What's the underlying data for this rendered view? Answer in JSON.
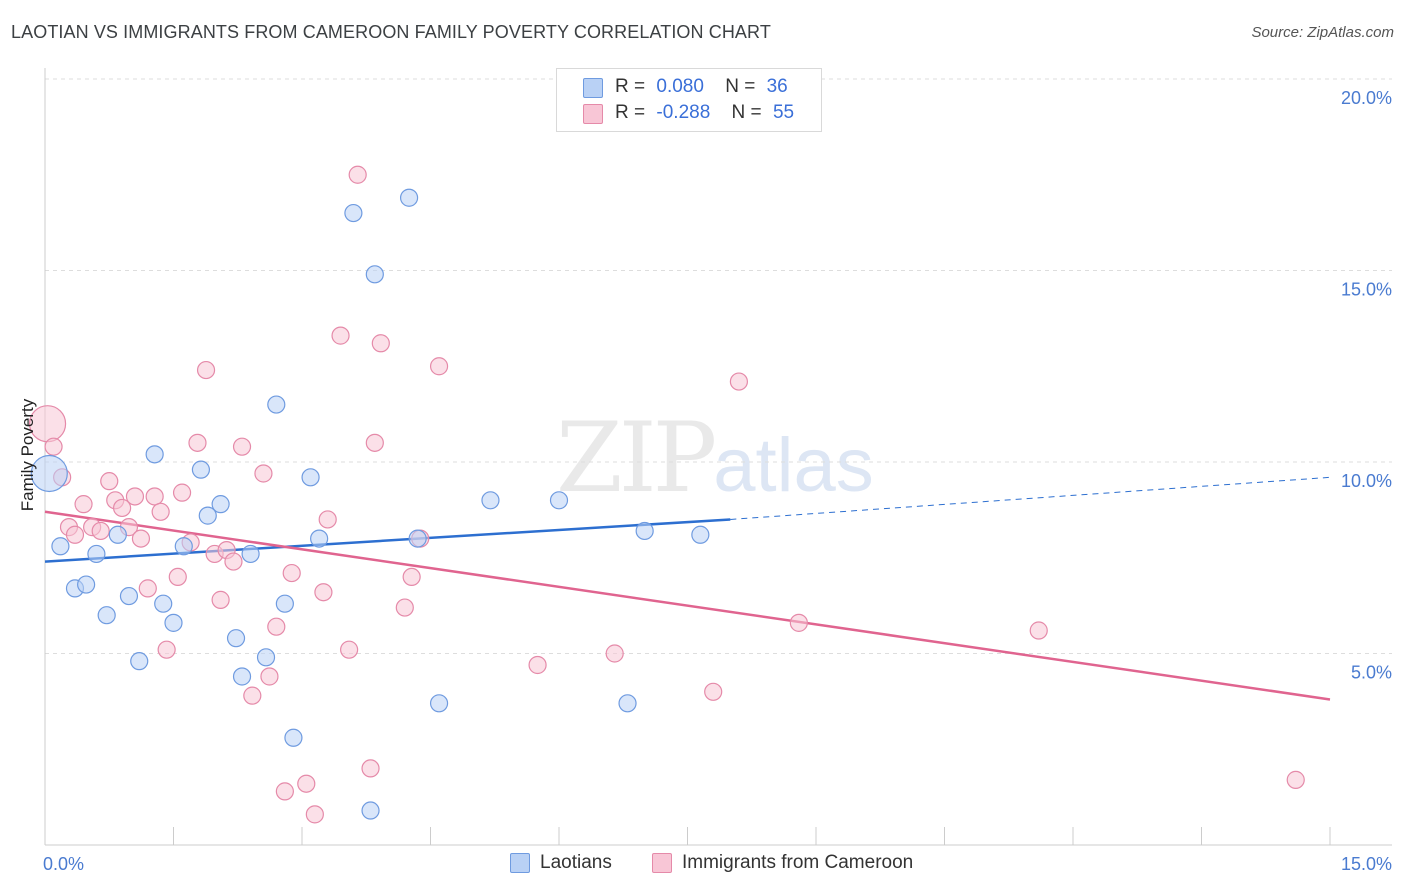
{
  "header": {
    "title": "LAOTIAN VS IMMIGRANTS FROM CAMEROON FAMILY POVERTY CORRELATION CHART",
    "source": "Source: ZipAtlas.com"
  },
  "watermark": {
    "zip": "ZIP",
    "atlas": "atlas"
  },
  "legend": {
    "rows": [
      {
        "r_label": "R =",
        "r_value": "0.080",
        "n_label": "N =",
        "n_value": "36"
      },
      {
        "r_label": "R =",
        "r_value": "-0.288",
        "n_label": "N =",
        "n_value": "55"
      }
    ]
  },
  "bottom_legend": {
    "series1": "Laotians",
    "series2": "Immigrants from Cameroon"
  },
  "colors": {
    "laotian_fill": "#b9d1f5",
    "laotian_stroke": "#6f9be0",
    "laotian_line": "#2d6fd0",
    "cameroon_fill": "#f8c6d6",
    "cameroon_stroke": "#e58aa9",
    "cameroon_line": "#e0648f",
    "tick_text": "#4a7bd0",
    "grid": "#dddddd"
  },
  "chart_data": {
    "type": "scatter",
    "title": "LAOTIAN VS IMMIGRANTS FROM CAMEROON FAMILY POVERTY CORRELATION CHART",
    "xlabel": "",
    "ylabel": "Family Poverty",
    "xlim": [
      0,
      15
    ],
    "ylim": [
      0,
      20
    ],
    "x_tick_labels": [
      "0.0%",
      "15.0%"
    ],
    "y_ticks": [
      5,
      10,
      15,
      20
    ],
    "y_tick_labels": [
      "5.0%",
      "10.0%",
      "15.0%",
      "20.0%"
    ],
    "grid": true,
    "legend_position": "top-center",
    "series": [
      {
        "name": "Laotians",
        "r": 0.08,
        "n": 36,
        "trend": {
          "x": [
            0,
            8.0
          ],
          "y": [
            7.4,
            8.5
          ],
          "dashed_to": [
            15,
            9.6
          ]
        },
        "points": [
          {
            "x": 0.05,
            "y": 9.7,
            "big": true
          },
          {
            "x": 0.18,
            "y": 7.8
          },
          {
            "x": 0.35,
            "y": 6.7
          },
          {
            "x": 0.48,
            "y": 6.8
          },
          {
            "x": 0.6,
            "y": 7.6
          },
          {
            "x": 0.72,
            "y": 6.0
          },
          {
            "x": 0.85,
            "y": 8.1
          },
          {
            "x": 0.98,
            "y": 6.5
          },
          {
            "x": 1.1,
            "y": 4.8
          },
          {
            "x": 1.28,
            "y": 10.2
          },
          {
            "x": 1.38,
            "y": 6.3
          },
          {
            "x": 1.5,
            "y": 5.8
          },
          {
            "x": 1.62,
            "y": 7.8
          },
          {
            "x": 1.82,
            "y": 9.8
          },
          {
            "x": 1.9,
            "y": 8.6
          },
          {
            "x": 2.05,
            "y": 8.9
          },
          {
            "x": 2.23,
            "y": 5.4
          },
          {
            "x": 2.3,
            "y": 4.4
          },
          {
            "x": 2.4,
            "y": 7.6
          },
          {
            "x": 2.58,
            "y": 4.9
          },
          {
            "x": 2.7,
            "y": 11.5
          },
          {
            "x": 2.8,
            "y": 6.3
          },
          {
            "x": 2.9,
            "y": 2.8
          },
          {
            "x": 3.1,
            "y": 9.6
          },
          {
            "x": 3.2,
            "y": 8.0
          },
          {
            "x": 3.6,
            "y": 16.5
          },
          {
            "x": 3.8,
            "y": 0.9
          },
          {
            "x": 3.85,
            "y": 14.9
          },
          {
            "x": 4.25,
            "y": 16.9
          },
          {
            "x": 4.35,
            "y": 8.0
          },
          {
            "x": 4.6,
            "y": 3.7
          },
          {
            "x": 5.2,
            "y": 9.0
          },
          {
            "x": 6.0,
            "y": 9.0
          },
          {
            "x": 6.8,
            "y": 3.7
          },
          {
            "x": 7.0,
            "y": 8.2
          },
          {
            "x": 7.65,
            "y": 8.1
          }
        ]
      },
      {
        "name": "Immigrants from Cameroon",
        "r": -0.288,
        "n": 55,
        "trend": {
          "x": [
            0,
            15
          ],
          "y": [
            8.7,
            3.8
          ]
        },
        "points": [
          {
            "x": 0.03,
            "y": 11.0,
            "big": true
          },
          {
            "x": 0.1,
            "y": 10.4
          },
          {
            "x": 0.2,
            "y": 9.6
          },
          {
            "x": 0.28,
            "y": 8.3
          },
          {
            "x": 0.35,
            "y": 8.1
          },
          {
            "x": 0.45,
            "y": 8.9
          },
          {
            "x": 0.55,
            "y": 8.3
          },
          {
            "x": 0.65,
            "y": 8.2
          },
          {
            "x": 0.75,
            "y": 9.5
          },
          {
            "x": 0.82,
            "y": 9.0
          },
          {
            "x": 0.9,
            "y": 8.8
          },
          {
            "x": 0.98,
            "y": 8.3
          },
          {
            "x": 1.05,
            "y": 9.1
          },
          {
            "x": 1.12,
            "y": 8.0
          },
          {
            "x": 1.2,
            "y": 6.7
          },
          {
            "x": 1.28,
            "y": 9.1
          },
          {
            "x": 1.35,
            "y": 8.7
          },
          {
            "x": 1.42,
            "y": 5.1
          },
          {
            "x": 1.55,
            "y": 7.0
          },
          {
            "x": 1.6,
            "y": 9.2
          },
          {
            "x": 1.7,
            "y": 7.9
          },
          {
            "x": 1.78,
            "y": 10.5
          },
          {
            "x": 1.88,
            "y": 12.4
          },
          {
            "x": 1.98,
            "y": 7.6
          },
          {
            "x": 2.05,
            "y": 6.4
          },
          {
            "x": 2.12,
            "y": 7.7
          },
          {
            "x": 2.2,
            "y": 7.4
          },
          {
            "x": 2.3,
            "y": 10.4
          },
          {
            "x": 2.42,
            "y": 3.9
          },
          {
            "x": 2.55,
            "y": 9.7
          },
          {
            "x": 2.62,
            "y": 4.4
          },
          {
            "x": 2.7,
            "y": 5.7
          },
          {
            "x": 2.8,
            "y": 1.4
          },
          {
            "x": 2.88,
            "y": 7.1
          },
          {
            "x": 3.05,
            "y": 1.6
          },
          {
            "x": 3.15,
            "y": 0.8
          },
          {
            "x": 3.25,
            "y": 6.6
          },
          {
            "x": 3.3,
            "y": 8.5
          },
          {
            "x": 3.45,
            "y": 13.3
          },
          {
            "x": 3.55,
            "y": 5.1
          },
          {
            "x": 3.65,
            "y": 17.5
          },
          {
            "x": 3.8,
            "y": 2.0
          },
          {
            "x": 3.85,
            "y": 10.5
          },
          {
            "x": 3.92,
            "y": 13.1
          },
          {
            "x": 4.2,
            "y": 6.2
          },
          {
            "x": 4.28,
            "y": 7.0
          },
          {
            "x": 4.38,
            "y": 8.0
          },
          {
            "x": 4.6,
            "y": 12.5
          },
          {
            "x": 5.75,
            "y": 4.7
          },
          {
            "x": 6.65,
            "y": 5.0
          },
          {
            "x": 7.8,
            "y": 4.0
          },
          {
            "x": 8.1,
            "y": 12.1
          },
          {
            "x": 8.8,
            "y": 5.8
          },
          {
            "x": 11.6,
            "y": 5.6
          },
          {
            "x": 14.6,
            "y": 1.7
          }
        ]
      }
    ]
  }
}
